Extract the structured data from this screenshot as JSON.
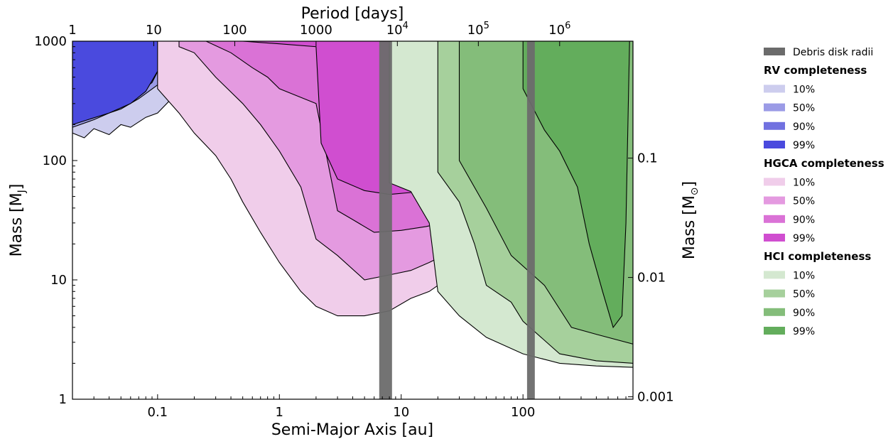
{
  "chart_data": {
    "type": "area",
    "title": "",
    "xlabel": "Semi-Major Axis [au]",
    "ylabel": "Mass [M",
    "ylabel_sub": "J",
    "ylabel_close": "]",
    "xlabel_top": "Period [days]",
    "ylabel_right": "Mass [M",
    "ylabel_right_sub": "⊙",
    "ylabel_right_close": "]",
    "x_scale": "log",
    "y_scale": "log",
    "xlim": [
      0.02,
      800
    ],
    "ylim": [
      1,
      1000
    ],
    "grid": false,
    "x_ticks": [
      {
        "value": 0.1,
        "label": "0.1"
      },
      {
        "value": 1,
        "label": "1"
      },
      {
        "value": 10,
        "label": "10"
      },
      {
        "value": 100,
        "label": "100"
      }
    ],
    "y_ticks": [
      {
        "value": 1,
        "label": "1"
      },
      {
        "value": 10,
        "label": "10"
      },
      {
        "value": 100,
        "label": "100"
      },
      {
        "value": 1000,
        "label": "1000"
      }
    ],
    "top_ticks": [
      {
        "a": 0.02,
        "label": "1",
        "sup": ""
      },
      {
        "a": 0.093,
        "label": "10",
        "sup": ""
      },
      {
        "a": 0.43,
        "label": "100",
        "sup": ""
      },
      {
        "a": 2.0,
        "label": "1000",
        "sup": ""
      },
      {
        "a": 9.3,
        "label": "10",
        "sup": "4"
      },
      {
        "a": 43,
        "label": "10",
        "sup": "5"
      },
      {
        "a": 200,
        "label": "10",
        "sup": "6"
      }
    ],
    "right_ticks": [
      {
        "mass_mj": 104.8,
        "label": "0.1"
      },
      {
        "mass_mj": 10.48,
        "label": "0.01"
      },
      {
        "mass_mj": 1.048,
        "label": "0.001"
      }
    ],
    "debris_disk_radii": [
      {
        "from": 6.6,
        "to": 8.4
      },
      {
        "from": 108,
        "to": 125
      }
    ],
    "legend_position": "right, outside plot",
    "legend": [
      {
        "kind": "entry",
        "label": "Debris disk radii",
        "color": "#6b6b6b"
      },
      {
        "kind": "header",
        "label": "RV completeness"
      },
      {
        "kind": "entry",
        "label": "10%",
        "color": "#cdcdee"
      },
      {
        "kind": "entry",
        "label": "50%",
        "color": "#9b9be6"
      },
      {
        "kind": "entry",
        "label": "90%",
        "color": "#7171e0"
      },
      {
        "kind": "entry",
        "label": "99%",
        "color": "#4a4ade"
      },
      {
        "kind": "header",
        "label": "HGCA completeness"
      },
      {
        "kind": "entry",
        "label": "10%",
        "color": "#f0cdea"
      },
      {
        "kind": "entry",
        "label": "50%",
        "color": "#e49ae0"
      },
      {
        "kind": "entry",
        "label": "90%",
        "color": "#da72d6"
      },
      {
        "kind": "entry",
        "label": "99%",
        "color": "#d04ed0"
      },
      {
        "kind": "header",
        "label": "HCI completeness"
      },
      {
        "kind": "entry",
        "label": "10%",
        "color": "#d4e8d0"
      },
      {
        "kind": "entry",
        "label": "50%",
        "color": "#a6d09c"
      },
      {
        "kind": "entry",
        "label": "90%",
        "color": "#84bd7a"
      },
      {
        "kind": "entry",
        "label": "99%",
        "color": "#63ad5c"
      }
    ],
    "series": [
      {
        "group": "RV completeness",
        "level": "10%",
        "color": "#cdcdee",
        "boundary": [
          [
            0.02,
            170
          ],
          [
            0.025,
            155
          ],
          [
            0.03,
            185
          ],
          [
            0.04,
            165
          ],
          [
            0.05,
            200
          ],
          [
            0.06,
            190
          ],
          [
            0.08,
            230
          ],
          [
            0.1,
            250
          ],
          [
            0.13,
            330
          ],
          [
            0.18,
            600
          ],
          [
            0.25,
            1000
          ]
        ]
      },
      {
        "group": "RV completeness",
        "level": "50%",
        "color": "#9b9be6",
        "boundary": [
          [
            0.02,
            190
          ],
          [
            0.03,
            220
          ],
          [
            0.04,
            250
          ],
          [
            0.05,
            270
          ],
          [
            0.07,
            330
          ],
          [
            0.1,
            430
          ],
          [
            0.13,
            640
          ],
          [
            0.18,
            1000
          ]
        ]
      },
      {
        "group": "RV completeness",
        "level": "90%",
        "color": "#7171e0",
        "boundary": [
          [
            0.02,
            200
          ],
          [
            0.03,
            250
          ],
          [
            0.05,
            300
          ],
          [
            0.07,
            370
          ],
          [
            0.09,
            450
          ],
          [
            0.12,
            800
          ],
          [
            0.15,
            1000
          ]
        ]
      },
      {
        "group": "RV completeness",
        "level": "99%",
        "color": "#4a4ade",
        "boundary": [
          [
            0.02,
            200
          ],
          [
            0.04,
            250
          ],
          [
            0.06,
            300
          ],
          [
            0.08,
            380
          ],
          [
            0.1,
            560
          ],
          [
            0.115,
            700
          ],
          [
            0.13,
            1000
          ]
        ]
      },
      {
        "group": "HGCA completeness",
        "level": "10%",
        "color": "#f0cdea",
        "boundary": [
          [
            0.1,
            400
          ],
          [
            0.15,
            250
          ],
          [
            0.2,
            170
          ],
          [
            0.3,
            110
          ],
          [
            0.4,
            70
          ],
          [
            0.5,
            45
          ],
          [
            0.7,
            25
          ],
          [
            1.0,
            14
          ],
          [
            1.5,
            8
          ],
          [
            2.0,
            6
          ],
          [
            3.0,
            5
          ],
          [
            5.0,
            5
          ],
          [
            8.0,
            5.5
          ],
          [
            12,
            7
          ],
          [
            17,
            8
          ],
          [
            30,
            12
          ]
        ]
      },
      {
        "group": "HGCA completeness",
        "level": "50%",
        "color": "#e49ae0",
        "boundary": [
          [
            0.15,
            900
          ],
          [
            0.2,
            800
          ],
          [
            0.3,
            500
          ],
          [
            0.5,
            300
          ],
          [
            0.7,
            200
          ],
          [
            1.0,
            120
          ],
          [
            1.5,
            60
          ],
          [
            2.0,
            22
          ],
          [
            3.0,
            16
          ],
          [
            5.0,
            10
          ],
          [
            8.0,
            11
          ],
          [
            12,
            12
          ],
          [
            17,
            14
          ],
          [
            25,
            17
          ]
        ]
      },
      {
        "group": "HGCA completeness",
        "level": "90%",
        "color": "#da72d6",
        "boundary": [
          [
            0.25,
            1000
          ],
          [
            0.4,
            800
          ],
          [
            0.6,
            600
          ],
          [
            0.8,
            500
          ],
          [
            1.0,
            400
          ],
          [
            2.0,
            300
          ],
          [
            3.0,
            38
          ],
          [
            4.0,
            32
          ],
          [
            6.0,
            25
          ],
          [
            10,
            26
          ],
          [
            16,
            28
          ],
          [
            22,
            30
          ]
        ]
      },
      {
        "group": "HGCA completeness",
        "level": "99%",
        "color": "#d04ed0",
        "boundary": [
          [
            0.5,
            1000
          ],
          [
            1.0,
            950
          ],
          [
            2.0,
            900
          ],
          [
            2.2,
            140
          ],
          [
            3.0,
            70
          ],
          [
            5.0,
            56
          ],
          [
            8.0,
            52
          ],
          [
            12,
            54
          ],
          [
            18,
            60
          ]
        ]
      },
      {
        "group": "HCI completeness",
        "level": "10%",
        "color": "#d4e8d0",
        "boundary": [
          [
            8,
            65
          ],
          [
            12,
            55
          ],
          [
            17,
            30
          ],
          [
            20,
            8
          ],
          [
            30,
            5
          ],
          [
            50,
            3.3
          ],
          [
            100,
            2.4
          ],
          [
            200,
            2.0
          ],
          [
            400,
            1.9
          ],
          [
            800,
            1.85
          ]
        ]
      },
      {
        "group": "HCI completeness",
        "level": "50%",
        "color": "#a6d09c",
        "boundary": [
          [
            20,
            80
          ],
          [
            30,
            45
          ],
          [
            40,
            20
          ],
          [
            50,
            9
          ],
          [
            80,
            6.5
          ],
          [
            100,
            4.5
          ],
          [
            200,
            2.4
          ],
          [
            400,
            2.1
          ],
          [
            800,
            2.0
          ]
        ]
      },
      {
        "group": "HCI completeness",
        "level": "90%",
        "color": "#84bd7a",
        "boundary": [
          [
            30,
            100
          ],
          [
            50,
            40
          ],
          [
            80,
            16
          ],
          [
            150,
            9
          ],
          [
            250,
            4
          ],
          [
            400,
            3.5
          ],
          [
            800,
            2.9
          ]
        ]
      },
      {
        "group": "HCI completeness",
        "level": "99%",
        "color": "#63ad5c",
        "boundary": [
          [
            100,
            400
          ],
          [
            150,
            180
          ],
          [
            200,
            120
          ],
          [
            280,
            60
          ],
          [
            350,
            20
          ],
          [
            450,
            8
          ],
          [
            550,
            4
          ],
          [
            650,
            5
          ],
          [
            700,
            30
          ],
          [
            750,
            1000
          ]
        ]
      }
    ]
  }
}
